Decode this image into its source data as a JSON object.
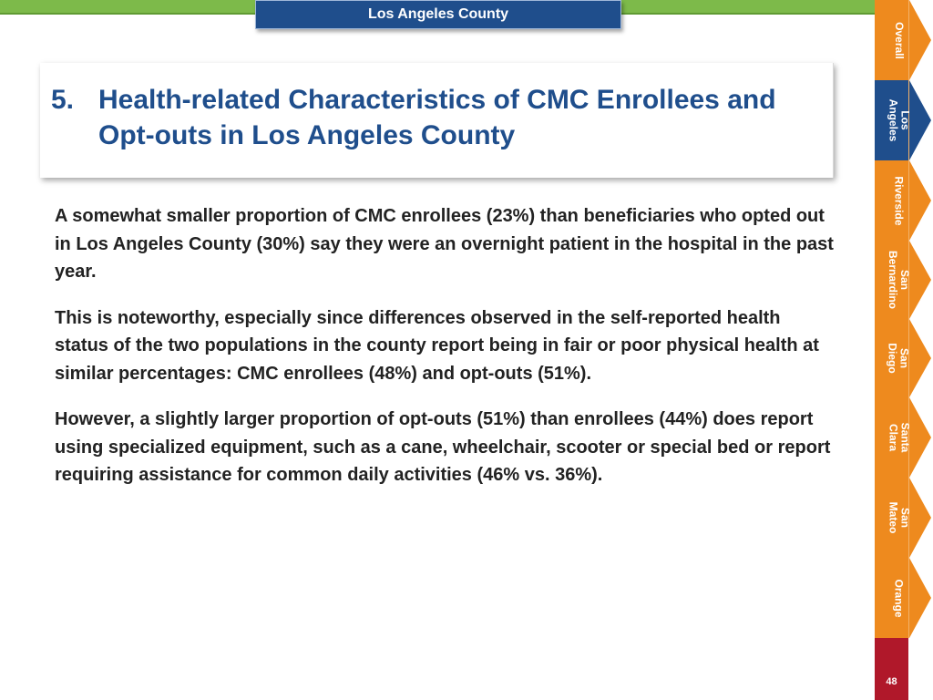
{
  "header": {
    "county": "Los Angeles County"
  },
  "title": {
    "number": "5.",
    "text": "Health-related Characteristics of CMC Enrollees and Opt-outs in Los Angeles County"
  },
  "body": {
    "paragraphs": [
      "A somewhat smaller proportion of CMC enrollees (23%) than beneficiaries who opted out in Los Angeles County (30%) say they were an overnight patient in the hospital in the past year.",
      "This is noteworthy, especially since differences observed in the self-reported health status of the two populations in the county report being in fair or poor physical health at similar percentages: CMC enrollees (48%) and opt-outs (51%).",
      "However, a slightly larger proportion of opt-outs (51%) than enrollees (44%) does report using specialized equipment, such as a cane, wheelchair, scooter or special bed or report requiring assistance for common daily activities (46% vs. 36%)."
    ]
  },
  "sidebar": {
    "active": "Los Angeles",
    "tabs": [
      {
        "label": "Overall"
      },
      {
        "label": "Los\nAngeles"
      },
      {
        "label": "Riverside"
      },
      {
        "label": "San\nBernardino"
      },
      {
        "label": "San\nDiego"
      },
      {
        "label": "Santa\nClara"
      },
      {
        "label": "San\nMateo"
      },
      {
        "label": "Orange"
      }
    ]
  },
  "page": {
    "number": "48"
  },
  "colors": {
    "accent_blue": "#1f4e8c",
    "tab_orange": "#ee8a1e",
    "top_green": "#7dba4a",
    "footer_red": "#b0182a"
  }
}
